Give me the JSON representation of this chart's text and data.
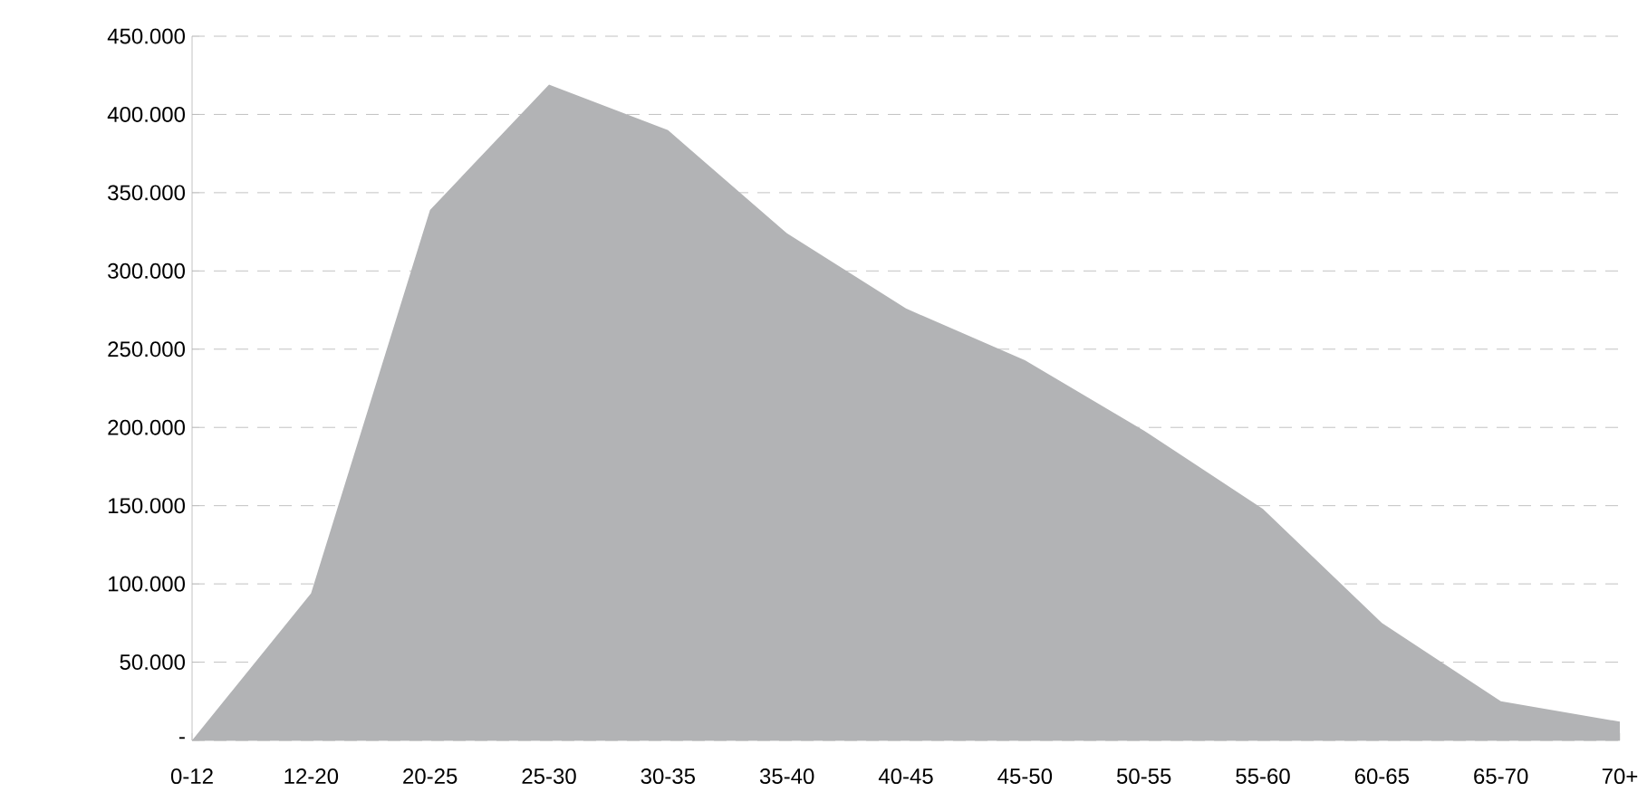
{
  "chart_data": {
    "type": "area",
    "categories": [
      "0-12",
      "12-20",
      "20-25",
      "25-30",
      "30-35",
      "35-40",
      "40-45",
      "45-50",
      "50-55",
      "55-60",
      "60-65",
      "65-70",
      "70+"
    ],
    "values": [
      0,
      94000,
      339000,
      419000,
      390000,
      324000,
      276000,
      243000,
      198000,
      148000,
      75000,
      25000,
      12000
    ],
    "color": "#b2b3b5",
    "ylim": [
      0,
      450000
    ],
    "yticks": [
      {
        "value": 0,
        "label": "-"
      },
      {
        "value": 50000,
        "label": "50.000"
      },
      {
        "value": 100000,
        "label": "100.000"
      },
      {
        "value": 150000,
        "label": "150.000"
      },
      {
        "value": 200000,
        "label": "200.000"
      },
      {
        "value": 250000,
        "label": "250.000"
      },
      {
        "value": 300000,
        "label": "300.000"
      },
      {
        "value": 350000,
        "label": "350.000"
      },
      {
        "value": 400000,
        "label": "400.000"
      },
      {
        "value": 450000,
        "label": "450.000"
      }
    ],
    "grid": "y"
  }
}
